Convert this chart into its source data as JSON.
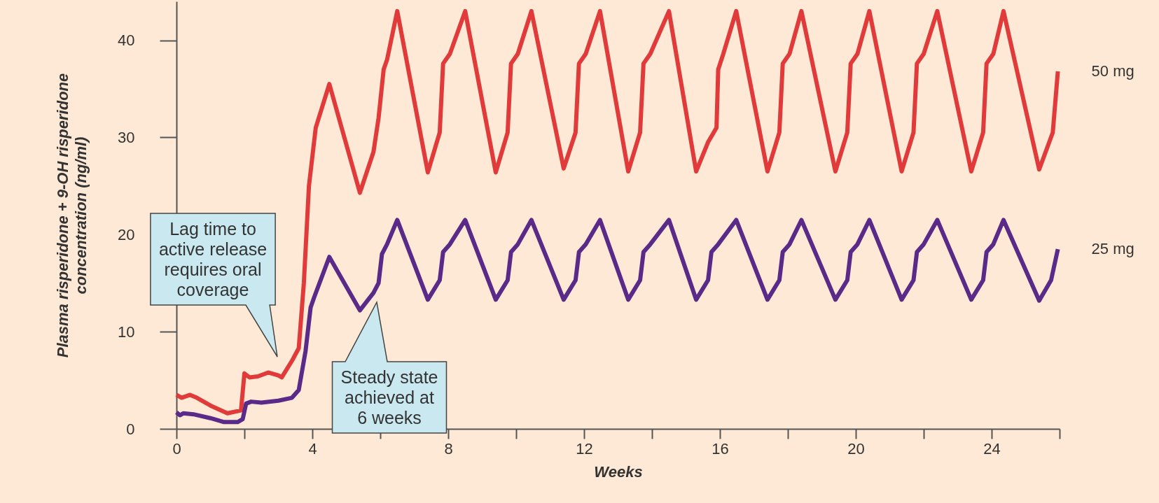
{
  "chart_data": {
    "type": "line",
    "xlabel": "Weeks",
    "ylabel": "Plasma risperidone + 9-OH risperidone concentration (ng/ml)",
    "xlim": [
      0,
      26
    ],
    "ylim": [
      0,
      44
    ],
    "xticks": [
      0,
      {
        "value": 2,
        "label": null
      },
      4,
      {
        "value": 6,
        "label": null
      },
      8,
      {
        "value": 10,
        "label": null
      },
      12,
      {
        "value": 14,
        "label": null
      },
      16,
      {
        "value": 18,
        "label": null
      },
      20,
      {
        "value": 22,
        "label": null
      },
      24,
      {
        "value": 26,
        "label": null
      }
    ],
    "yticks": [
      0,
      10,
      20,
      30,
      40
    ],
    "grid": false,
    "marker": "none",
    "line_style": "solid",
    "series": [
      {
        "name": "50 mg",
        "color": "#e03a3a",
        "x": [
          0,
          0.15,
          0.4,
          0.6,
          1.0,
          1.5,
          1.9,
          2.0,
          2.15,
          2.4,
          2.7,
          3.0,
          3.1,
          3.4,
          3.6,
          3.75,
          3.9,
          4.1,
          4.5,
          5.4,
          5.8,
          5.95,
          6.1,
          6.2,
          6.5,
          7.4,
          7.75,
          7.85,
          8.05,
          8.5,
          9.4,
          9.75,
          9.85,
          10.05,
          10.45,
          11.4,
          11.75,
          11.85,
          12.05,
          12.47,
          13.3,
          13.65,
          13.75,
          13.95,
          14.5,
          15.3,
          15.65,
          15.9,
          15.95,
          16.1,
          16.48,
          17.4,
          17.75,
          17.85,
          18.05,
          18.4,
          19.4,
          19.75,
          19.85,
          20.05,
          20.4,
          21.35,
          21.7,
          21.8,
          22.0,
          22.4,
          23.4,
          23.75,
          23.85,
          24.05,
          24.35,
          25.4,
          25.8,
          25.95
        ],
        "values": [
          3.5,
          3.2,
          3.5,
          3.2,
          2.4,
          1.6,
          1.9,
          5.7,
          5.3,
          5.4,
          5.8,
          5.5,
          5.3,
          7,
          8.3,
          15,
          25,
          31,
          35.5,
          24.3,
          28.5,
          32,
          37,
          38,
          43,
          26.4,
          30.5,
          37.6,
          38.6,
          43,
          26.4,
          30.5,
          37.6,
          38.6,
          43,
          26.8,
          30.5,
          37.6,
          38.6,
          43,
          26.5,
          30.5,
          37.6,
          38.6,
          43,
          26.5,
          29.5,
          31,
          37,
          38.6,
          43,
          26.5,
          30.5,
          37.6,
          38.6,
          43,
          26.5,
          30.5,
          37.6,
          38.6,
          43,
          26.5,
          30.5,
          37.6,
          38.6,
          43,
          26.5,
          30.5,
          37.6,
          38.6,
          43,
          26.7,
          30.5,
          36.8
        ]
      },
      {
        "name": "25 mg",
        "color": "#5a2a88",
        "x": [
          0,
          0.1,
          0.2,
          0.5,
          1.0,
          1.4,
          1.8,
          1.95,
          2.05,
          2.2,
          2.5,
          3.0,
          3.4,
          3.6,
          3.8,
          3.95,
          4.05,
          4.5,
          5.4,
          5.8,
          5.95,
          6.05,
          6.2,
          6.5,
          7.4,
          7.75,
          7.85,
          8.05,
          8.5,
          9.4,
          9.75,
          9.85,
          10.05,
          10.45,
          11.4,
          11.75,
          11.85,
          12.05,
          12.47,
          13.3,
          13.65,
          13.75,
          13.95,
          14.5,
          15.3,
          15.65,
          15.75,
          15.95,
          16.48,
          17.4,
          17.75,
          17.85,
          18.05,
          18.4,
          19.4,
          19.75,
          19.85,
          20.05,
          20.4,
          21.35,
          21.7,
          21.8,
          22.0,
          22.4,
          23.4,
          23.75,
          23.85,
          24.05,
          24.35,
          25.4,
          25.75,
          25.95
        ],
        "values": [
          1.7,
          1.4,
          1.6,
          1.5,
          1.1,
          0.7,
          0.7,
          1.0,
          2.6,
          2.8,
          2.7,
          2.9,
          3.2,
          4,
          8,
          12.5,
          13.5,
          17.7,
          12.2,
          14,
          15,
          18,
          19,
          21.5,
          13.3,
          15.3,
          18.2,
          19,
          21.5,
          13.3,
          15.3,
          18.2,
          19,
          21.5,
          13.3,
          15.3,
          18.2,
          19,
          21.5,
          13.3,
          15.3,
          18.2,
          19,
          21.5,
          13.3,
          15.3,
          18.2,
          19,
          21.5,
          13.3,
          15.3,
          18.2,
          19,
          21.5,
          13.3,
          15.3,
          18.2,
          19,
          21.5,
          13.3,
          15.3,
          18.2,
          19,
          21.5,
          13.3,
          15.3,
          18.2,
          19,
          21.5,
          13.2,
          15.3,
          18.5
        ]
      }
    ],
    "annotations": [
      "Lag time to active release requires oral coverage",
      "Steady state achieved at 6 weeks"
    ]
  }
}
